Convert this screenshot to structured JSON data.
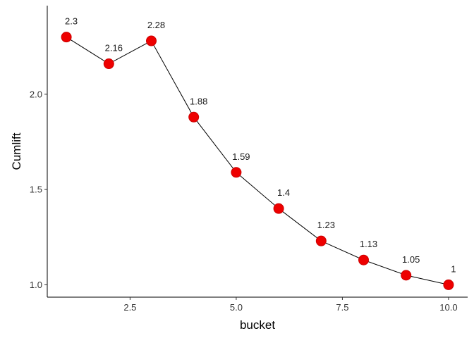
{
  "chart_data": {
    "type": "line",
    "xlabel": "bucket",
    "ylabel": "Cumlift",
    "x": [
      1,
      2,
      3,
      4,
      5,
      6,
      7,
      8,
      9,
      10
    ],
    "y": [
      2.3,
      2.16,
      2.28,
      1.88,
      1.59,
      1.4,
      1.23,
      1.13,
      1.05,
      1.0
    ],
    "data_labels": [
      "2.3",
      "2.16",
      "2.28",
      "1.88",
      "1.59",
      "1.4",
      "1.23",
      "1.13",
      "1.05",
      "1"
    ],
    "xticks": [
      2.5,
      5.0,
      7.5,
      10.0
    ],
    "xtick_labels": [
      "2.5",
      "5.0",
      "7.5",
      "10.0"
    ],
    "yticks": [
      1.0,
      1.5,
      2.0
    ],
    "ytick_labels": [
      "1.0",
      "1.5",
      "2.0"
    ],
    "xlim": [
      0.55,
      10.45
    ],
    "ylim": [
      0.935,
      2.465
    ],
    "grid": false,
    "legend": "none",
    "point_color": "#ee0000",
    "line_color": "#000000"
  }
}
